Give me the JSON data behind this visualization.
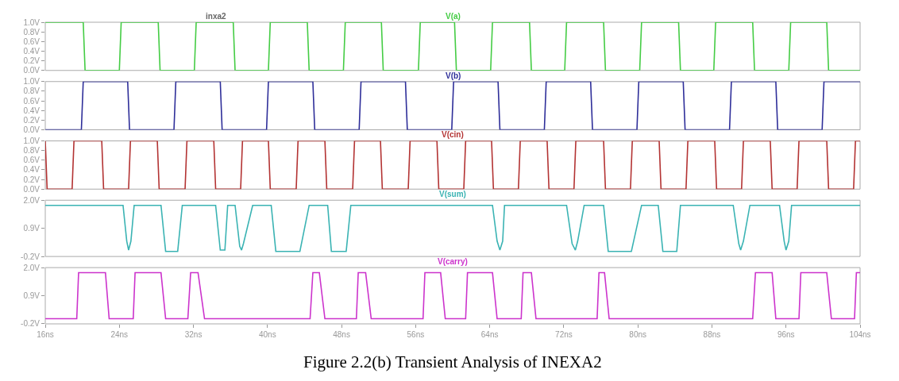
{
  "chart_data": [
    {
      "type": "line",
      "title": "inxa2",
      "xlim": [
        16,
        104
      ],
      "ylim": [
        0,
        1.0
      ],
      "yticks": [
        {
          "value": 0,
          "label": "0.0V"
        },
        {
          "value": 0.2,
          "label": "0.2V"
        },
        {
          "value": 0.4,
          "label": "0.4V"
        },
        {
          "value": 0.6,
          "label": "0.6V"
        },
        {
          "value": 0.8,
          "label": "0.8V"
        },
        {
          "value": 1.0,
          "label": "1.0V"
        }
      ],
      "tick_labels": "y",
      "grid": false,
      "marker": "none",
      "line_style": "solid",
      "series": [
        {
          "name": "V(a)",
          "color": "#44cc44",
          "x": [
            16,
            20.1,
            20.3,
            24.0,
            24.2,
            28.2,
            28.4,
            32.1,
            32.3,
            36.3,
            36.5,
            40.1,
            40.3,
            44.3,
            44.5,
            48.2,
            48.4,
            52.3,
            52.5,
            56.3,
            56.5,
            60.2,
            60.4,
            64.1,
            64.3,
            68.3,
            68.5,
            72.1,
            72.3,
            76.3,
            76.5,
            80.2,
            80.4,
            84.4,
            84.6,
            88.2,
            88.4,
            92.4,
            92.6,
            96.3,
            96.5,
            100.4,
            100.6,
            104
          ],
          "values": [
            1,
            1,
            0,
            0,
            1,
            1,
            0,
            0,
            1,
            1,
            0,
            0,
            1,
            1,
            0,
            0,
            1,
            1,
            0,
            0,
            1,
            1,
            0,
            0,
            1,
            1,
            0,
            0,
            1,
            1,
            0,
            0,
            1,
            1,
            0,
            0,
            1,
            1,
            0,
            0,
            1,
            1,
            0,
            0
          ]
        }
      ]
    },
    {
      "type": "line",
      "xlim": [
        16,
        104
      ],
      "ylim": [
        0,
        1.0
      ],
      "yticks": [
        {
          "value": 0,
          "label": "0.0V"
        },
        {
          "value": 0.2,
          "label": "0.2V"
        },
        {
          "value": 0.4,
          "label": "0.4V"
        },
        {
          "value": 0.6,
          "label": "0.6V"
        },
        {
          "value": 0.8,
          "label": "0.8V"
        },
        {
          "value": 1.0,
          "label": "1.0V"
        }
      ],
      "tick_labels": "y",
      "grid": false,
      "marker": "none",
      "line_style": "solid",
      "series": [
        {
          "name": "V(b)",
          "color": "#2e2e99",
          "x": [
            16,
            19.9,
            20.1,
            24.9,
            25.1,
            29.9,
            30.1,
            34.9,
            35.1,
            39.9,
            40.1,
            44.9,
            45.1,
            49.9,
            50.1,
            54.9,
            55.1,
            59.9,
            60.1,
            64.9,
            65.1,
            69.9,
            70.1,
            74.9,
            75.1,
            79.9,
            80.1,
            84.9,
            85.1,
            89.9,
            90.1,
            94.9,
            95.1,
            99.9,
            100.1,
            104
          ],
          "values": [
            0,
            0,
            1,
            1,
            0,
            0,
            1,
            1,
            0,
            0,
            1,
            1,
            0,
            0,
            1,
            1,
            0,
            0,
            1,
            1,
            0,
            0,
            1,
            1,
            0,
            0,
            1,
            1,
            0,
            0,
            1,
            1,
            0,
            0,
            1,
            1
          ]
        }
      ]
    },
    {
      "type": "line",
      "xlim": [
        16,
        104
      ],
      "ylim": [
        0,
        1.0
      ],
      "yticks": [
        {
          "value": 0,
          "label": "0.0V"
        },
        {
          "value": 0.2,
          "label": "0.2V"
        },
        {
          "value": 0.4,
          "label": "0.4V"
        },
        {
          "value": 0.6,
          "label": "0.6V"
        },
        {
          "value": 0.8,
          "label": "0.8V"
        },
        {
          "value": 1.0,
          "label": "1.0V"
        }
      ],
      "tick_labels": "y",
      "grid": false,
      "marker": "none",
      "line_style": "solid",
      "series": [
        {
          "name": "V(cin)",
          "color": "#b33333",
          "x": [
            16,
            16.2,
            18.9,
            19.1,
            22.1,
            22.3,
            25.0,
            25.2,
            28.1,
            28.3,
            31.1,
            31.3,
            34.2,
            34.4,
            37.1,
            37.3,
            40.1,
            40.3,
            43.1,
            43.3,
            46.2,
            46.4,
            49.2,
            49.4,
            52.2,
            52.4,
            55.2,
            55.4,
            58.3,
            58.5,
            61.2,
            61.4,
            64.2,
            64.4,
            67.1,
            67.3,
            70.2,
            70.4,
            73.1,
            73.3,
            76.3,
            76.5,
            79.2,
            79.4,
            82.3,
            82.5,
            85.2,
            85.4,
            88.3,
            88.5,
            91.2,
            91.4,
            94.3,
            94.5,
            97.2,
            97.4,
            100.4,
            100.6,
            103.3,
            103.5,
            104
          ],
          "values": [
            1,
            0,
            0,
            1,
            1,
            0,
            0,
            1,
            1,
            0,
            0,
            1,
            1,
            0,
            0,
            1,
            1,
            0,
            0,
            1,
            1,
            0,
            0,
            1,
            1,
            0,
            0,
            1,
            1,
            0,
            0,
            1,
            1,
            0,
            0,
            1,
            1,
            0,
            0,
            1,
            1,
            0,
            0,
            1,
            1,
            0,
            0,
            1,
            1,
            0,
            0,
            1,
            1,
            0,
            0,
            1,
            1,
            0,
            0,
            1,
            1
          ]
        }
      ]
    },
    {
      "type": "line",
      "xlim": [
        16,
        104
      ],
      "ylim": [
        -0.2,
        2.0
      ],
      "yticks": [
        {
          "value": -0.2,
          "label": "-0.2V"
        },
        {
          "value": 0.9,
          "label": "0.9V"
        },
        {
          "value": 2.0,
          "label": "2.0V"
        }
      ],
      "tick_labels": "y",
      "grid": false,
      "marker": "none",
      "line_style": "solid",
      "series": [
        {
          "name": "V(sum)",
          "color": "#3ab3b3",
          "x": [
            16,
            24.4,
            24.8,
            25.0,
            25.25,
            25.6,
            28.5,
            29.0,
            30.3,
            30.8,
            34.4,
            34.9,
            35.4,
            35.7,
            36.5,
            37.0,
            37.2,
            37.4,
            38.4,
            40.4,
            40.9,
            43.5,
            44.5,
            46.5,
            46.9,
            48.5,
            49.0,
            64.3,
            64.8,
            65.1,
            65.4,
            65.6,
            72.3,
            72.9,
            73.25,
            73.5,
            74.2,
            76.3,
            76.8,
            79.3,
            80.4,
            82.2,
            82.7,
            84.2,
            84.6,
            90.3,
            90.9,
            91.1,
            91.4,
            92.1,
            95.3,
            95.8,
            96.0,
            96.3,
            96.6,
            104
          ],
          "values": [
            1.8,
            1.8,
            0.4,
            0.05,
            0.4,
            1.8,
            1.8,
            0.0,
            0.0,
            1.8,
            1.8,
            0.05,
            0.05,
            1.8,
            1.8,
            0.2,
            0.05,
            0.3,
            1.8,
            1.8,
            0.0,
            0.0,
            1.8,
            1.8,
            0.0,
            0.0,
            1.8,
            1.8,
            0.4,
            0.05,
            0.4,
            1.8,
            1.8,
            0.3,
            0.05,
            0.4,
            1.8,
            1.8,
            0.0,
            0.0,
            1.8,
            1.8,
            0.0,
            0.0,
            1.8,
            1.8,
            0.3,
            0.05,
            0.4,
            1.8,
            1.8,
            0.4,
            0.05,
            0.4,
            1.8,
            1.8
          ]
        }
      ]
    },
    {
      "type": "line",
      "xlim": [
        16,
        104
      ],
      "xticks": [
        {
          "value": 16,
          "label": "16ns"
        },
        {
          "value": 24,
          "label": "24ns"
        },
        {
          "value": 32,
          "label": "32ns"
        },
        {
          "value": 40,
          "label": "40ns"
        },
        {
          "value": 48,
          "label": "48ns"
        },
        {
          "value": 56,
          "label": "56ns"
        },
        {
          "value": 64,
          "label": "64ns"
        },
        {
          "value": 72,
          "label": "72ns"
        },
        {
          "value": 80,
          "label": "80ns"
        },
        {
          "value": 88,
          "label": "88ns"
        },
        {
          "value": 96,
          "label": "96ns"
        },
        {
          "value": 104,
          "label": "104ns"
        }
      ],
      "ylim": [
        -0.2,
        2.0
      ],
      "yticks": [
        {
          "value": -0.2,
          "label": "-0.2V"
        },
        {
          "value": 0.9,
          "label": "0.9V"
        },
        {
          "value": 2.0,
          "label": "2.0V"
        }
      ],
      "grid": false,
      "marker": "none",
      "line_style": "solid",
      "annotations": [
        "Figure 2.2(b) Transient Analysis of INEXA2"
      ],
      "series": [
        {
          "name": "V(carry)",
          "color": "#cc33cc",
          "x": [
            16,
            19.4,
            19.6,
            22.5,
            22.9,
            25.5,
            25.7,
            28.5,
            29.0,
            31.4,
            31.7,
            32.5,
            33.2,
            44.6,
            44.9,
            45.6,
            46.2,
            49.6,
            49.8,
            50.6,
            51.2,
            56.8,
            57.0,
            58.7,
            59.2,
            61.4,
            61.6,
            64.3,
            64.8,
            67.4,
            67.6,
            68.5,
            69.0,
            75.6,
            75.8,
            76.4,
            76.9,
            92.4,
            92.7,
            94.5,
            94.9,
            97.4,
            97.6,
            100.4,
            100.9,
            103.4,
            103.6,
            104
          ],
          "values": [
            0.0,
            0.0,
            1.8,
            1.8,
            0.0,
            0.0,
            1.8,
            1.8,
            0.0,
            0.0,
            1.8,
            1.8,
            0.0,
            0.0,
            1.8,
            1.8,
            0.0,
            0.0,
            1.8,
            1.8,
            0.0,
            0.0,
            1.8,
            1.8,
            0.0,
            0.0,
            1.8,
            1.8,
            0.0,
            0.0,
            1.8,
            1.8,
            0.0,
            0.0,
            1.8,
            1.8,
            0.0,
            0.0,
            1.8,
            1.8,
            0.0,
            0.0,
            1.8,
            1.8,
            0.0,
            0.0,
            1.8,
            1.8
          ]
        }
      ]
    }
  ]
}
